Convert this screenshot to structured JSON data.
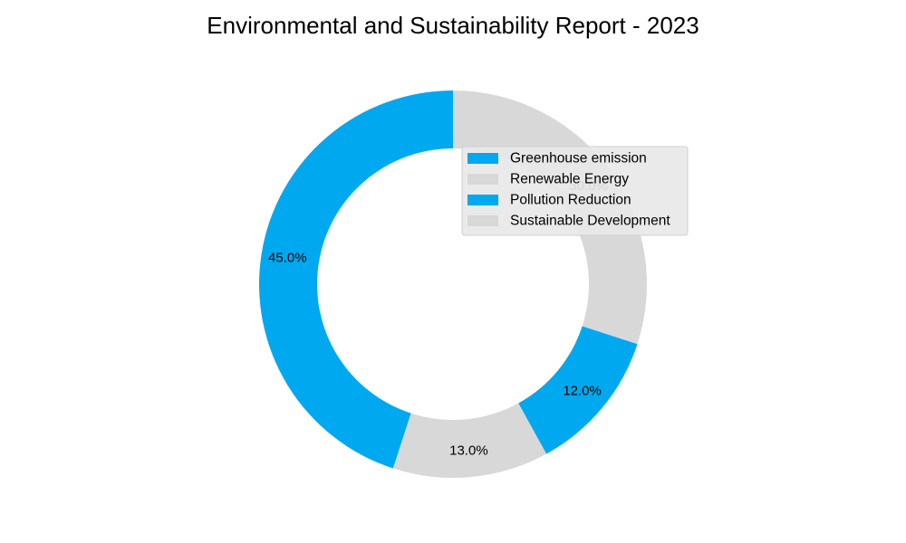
{
  "chart_data": {
    "type": "pie",
    "donut": true,
    "title": "Environmental and Sustainability Report - 2023",
    "categories": [
      "Greenhouse emission",
      "Renewable Energy",
      "Pollution Reduction",
      "Sustainable Development"
    ],
    "values": [
      45,
      13,
      12,
      30
    ],
    "labels": [
      "45.0%",
      "13.0%",
      "12.0%",
      "30.0%"
    ],
    "colors": [
      "#00a8f0",
      "#d8d8d8",
      "#00a8f0",
      "#d8d8d8"
    ],
    "start_angle_deg": 90,
    "direction": "counterclockwise",
    "legend_position": "upper-right"
  }
}
